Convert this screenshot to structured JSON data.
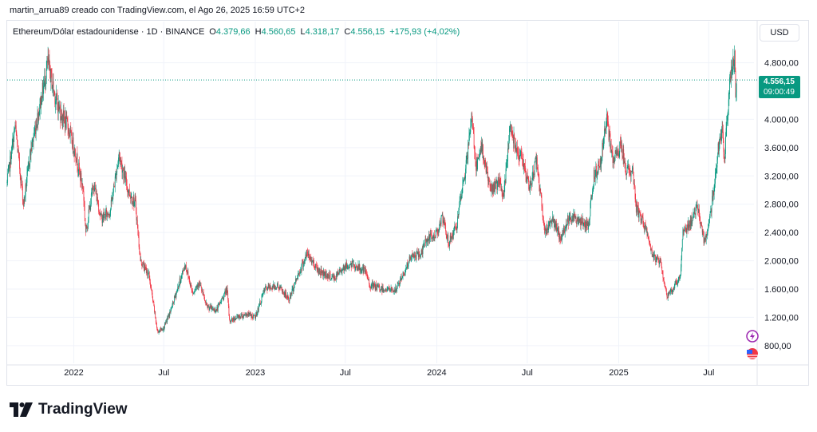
{
  "header": {
    "attribution": "martin_arrua89 creado con TradingView.com, el Ago 26, 2025 16:59 UTC+2"
  },
  "legend": {
    "symbol": "Ethereum/Dólar estadounidense · 1D · BINANCE",
    "open_label": "O",
    "open": "4.379,66",
    "high_label": "H",
    "high": "4.560,65",
    "low_label": "L",
    "low": "4.318,17",
    "close_label": "C",
    "close": "4.556,15",
    "change": "+175,93 (+4,02%)"
  },
  "toolbar": {
    "currency": "USD"
  },
  "price_badge": {
    "price": "4.556,15",
    "countdown": "09:00:49"
  },
  "footer": {
    "brand": "TradingView"
  },
  "colors": {
    "up": "#089981",
    "down": "#f23645",
    "grid": "#f0f3fa",
    "text": "#131722"
  },
  "chart_data": {
    "type": "candlestick",
    "ylim": [
      550,
      5100
    ],
    "y_ticks": [
      800,
      1200,
      1600,
      2000,
      2400,
      2800,
      3200,
      3600,
      4000,
      4800
    ],
    "y_tick_labels": [
      "800,00",
      "1.200,00",
      "1.600,00",
      "2.000,00",
      "2.400,00",
      "2.800,00",
      "3.200,00",
      "3.600,00",
      "4.000,00",
      "4.800,00"
    ],
    "x_range": [
      "2021-08-20",
      "2025-09-30"
    ],
    "x_ticks": [
      {
        "date": "2022-01-01",
        "label": "2022"
      },
      {
        "date": "2022-07-01",
        "label": "Jul"
      },
      {
        "date": "2023-01-01",
        "label": "2023"
      },
      {
        "date": "2023-07-01",
        "label": "Jul"
      },
      {
        "date": "2024-01-01",
        "label": "2024"
      },
      {
        "date": "2024-07-01",
        "label": "Jul"
      },
      {
        "date": "2025-01-01",
        "label": "2025"
      },
      {
        "date": "2025-07-01",
        "label": "Jul"
      }
    ],
    "last_price": 4556.15,
    "series": [
      {
        "date": "2021-08-20",
        "close": 3100
      },
      {
        "date": "2021-09-05",
        "close": 3900
      },
      {
        "date": "2021-09-22",
        "close": 2800
      },
      {
        "date": "2021-10-05",
        "close": 3500
      },
      {
        "date": "2021-10-22",
        "close": 4100
      },
      {
        "date": "2021-11-10",
        "close": 4800
      },
      {
        "date": "2021-11-25",
        "close": 4300
      },
      {
        "date": "2021-12-05",
        "close": 4100
      },
      {
        "date": "2021-12-20",
        "close": 3900
      },
      {
        "date": "2022-01-05",
        "close": 3500
      },
      {
        "date": "2022-01-20",
        "close": 3000
      },
      {
        "date": "2022-01-25",
        "close": 2400
      },
      {
        "date": "2022-02-10",
        "close": 3100
      },
      {
        "date": "2022-02-25",
        "close": 2600
      },
      {
        "date": "2022-03-15",
        "close": 2700
      },
      {
        "date": "2022-04-02",
        "close": 3500
      },
      {
        "date": "2022-04-20",
        "close": 3000
      },
      {
        "date": "2022-05-05",
        "close": 2800
      },
      {
        "date": "2022-05-15",
        "close": 2000
      },
      {
        "date": "2022-06-01",
        "close": 1800
      },
      {
        "date": "2022-06-14",
        "close": 1200
      },
      {
        "date": "2022-06-18",
        "close": 1000
      },
      {
        "date": "2022-07-01",
        "close": 1050
      },
      {
        "date": "2022-07-15",
        "close": 1300
      },
      {
        "date": "2022-08-13",
        "close": 1950
      },
      {
        "date": "2022-08-28",
        "close": 1550
      },
      {
        "date": "2022-09-10",
        "close": 1700
      },
      {
        "date": "2022-09-25",
        "close": 1350
      },
      {
        "date": "2022-10-15",
        "close": 1300
      },
      {
        "date": "2022-11-05",
        "close": 1600
      },
      {
        "date": "2022-11-10",
        "close": 1150
      },
      {
        "date": "2022-11-25",
        "close": 1200
      },
      {
        "date": "2022-12-15",
        "close": 1250
      },
      {
        "date": "2023-01-01",
        "close": 1200
      },
      {
        "date": "2023-01-20",
        "close": 1600
      },
      {
        "date": "2023-02-15",
        "close": 1650
      },
      {
        "date": "2023-03-10",
        "close": 1450
      },
      {
        "date": "2023-03-25",
        "close": 1750
      },
      {
        "date": "2023-04-15",
        "close": 2100
      },
      {
        "date": "2023-05-10",
        "close": 1850
      },
      {
        "date": "2023-06-10",
        "close": 1750
      },
      {
        "date": "2023-06-25",
        "close": 1900
      },
      {
        "date": "2023-07-15",
        "close": 1950
      },
      {
        "date": "2023-08-10",
        "close": 1850
      },
      {
        "date": "2023-08-20",
        "close": 1650
      },
      {
        "date": "2023-09-15",
        "close": 1600
      },
      {
        "date": "2023-10-10",
        "close": 1580
      },
      {
        "date": "2023-10-25",
        "close": 1800
      },
      {
        "date": "2023-11-10",
        "close": 2050
      },
      {
        "date": "2023-12-01",
        "close": 2100
      },
      {
        "date": "2023-12-10",
        "close": 2300
      },
      {
        "date": "2023-12-28",
        "close": 2350
      },
      {
        "date": "2024-01-12",
        "close": 2600
      },
      {
        "date": "2024-01-25",
        "close": 2250
      },
      {
        "date": "2024-02-10",
        "close": 2500
      },
      {
        "date": "2024-02-28",
        "close": 3300
      },
      {
        "date": "2024-03-12",
        "close": 4050
      },
      {
        "date": "2024-03-20",
        "close": 3300
      },
      {
        "date": "2024-04-01",
        "close": 3600
      },
      {
        "date": "2024-04-18",
        "close": 3000
      },
      {
        "date": "2024-05-05",
        "close": 3100
      },
      {
        "date": "2024-05-15",
        "close": 2900
      },
      {
        "date": "2024-05-27",
        "close": 3900
      },
      {
        "date": "2024-06-10",
        "close": 3600
      },
      {
        "date": "2024-06-25",
        "close": 3350
      },
      {
        "date": "2024-07-05",
        "close": 3000
      },
      {
        "date": "2024-07-20",
        "close": 3450
      },
      {
        "date": "2024-08-05",
        "close": 2400
      },
      {
        "date": "2024-08-20",
        "close": 2600
      },
      {
        "date": "2024-09-06",
        "close": 2300
      },
      {
        "date": "2024-09-25",
        "close": 2650
      },
      {
        "date": "2024-10-15",
        "close": 2550
      },
      {
        "date": "2024-11-01",
        "close": 2500
      },
      {
        "date": "2024-11-12",
        "close": 3200
      },
      {
        "date": "2024-11-25",
        "close": 3400
      },
      {
        "date": "2024-12-08",
        "close": 4000
      },
      {
        "date": "2024-12-20",
        "close": 3400
      },
      {
        "date": "2025-01-06",
        "close": 3650
      },
      {
        "date": "2025-01-15",
        "close": 3300
      },
      {
        "date": "2025-01-30",
        "close": 3250
      },
      {
        "date": "2025-02-05",
        "close": 2750
      },
      {
        "date": "2025-02-25",
        "close": 2450
      },
      {
        "date": "2025-03-10",
        "close": 2050
      },
      {
        "date": "2025-03-25",
        "close": 2000
      },
      {
        "date": "2025-04-08",
        "close": 1500
      },
      {
        "date": "2025-04-20",
        "close": 1600
      },
      {
        "date": "2025-05-05",
        "close": 1800
      },
      {
        "date": "2025-05-10",
        "close": 2400
      },
      {
        "date": "2025-05-25",
        "close": 2550
      },
      {
        "date": "2025-06-10",
        "close": 2750
      },
      {
        "date": "2025-06-22",
        "close": 2250
      },
      {
        "date": "2025-07-02",
        "close": 2550
      },
      {
        "date": "2025-07-10",
        "close": 2950
      },
      {
        "date": "2025-07-20",
        "close": 3600
      },
      {
        "date": "2025-07-28",
        "close": 3800
      },
      {
        "date": "2025-08-02",
        "close": 3450
      },
      {
        "date": "2025-08-13",
        "close": 4650
      },
      {
        "date": "2025-08-22",
        "close": 4850
      },
      {
        "date": "2025-08-24",
        "close": 4400
      },
      {
        "date": "2025-08-26",
        "close": 4556
      }
    ]
  }
}
